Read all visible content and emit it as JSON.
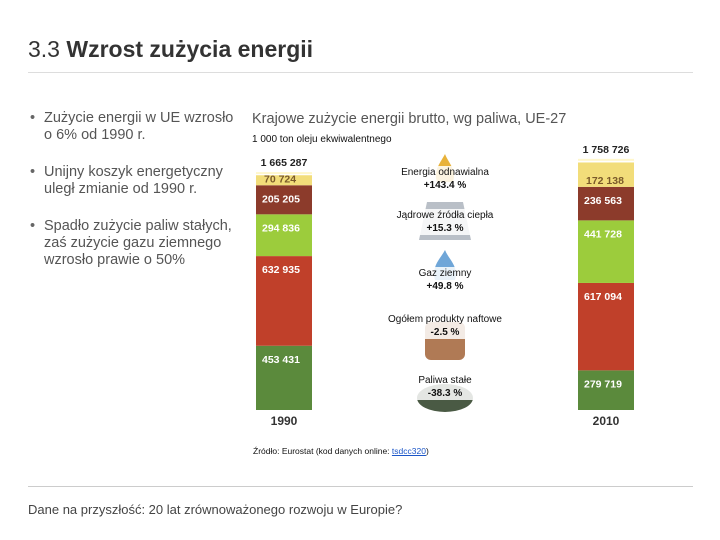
{
  "slide": {
    "title_prefix": "3.3 ",
    "title_main": "Wzrost zużycia energii",
    "bullets": [
      "Zużycie energii w UE wzrosło o 6% od 1990 r.",
      "Unijny koszyk energetyczny uległ zmianie od 1990 r.",
      "Spadło zużycie paliw stałych, zaś zużycie gazu ziemnego wzrosło prawie o 50%"
    ],
    "footer": "Dane na przyszłość: 20 lat zrównoważonego rozwoju w Europie?"
  },
  "source": {
    "prefix": "Źródło: Eurostat (kod danych online: ",
    "code": "tsdcc320",
    "suffix": ")"
  },
  "colors": {
    "solid": "#5b8a3c",
    "oil": "#c0402a",
    "gas": "#9ccc3c",
    "nuclear": "#8c3b2b",
    "renewable": "#f2dd7a",
    "total_band": "#fff7cc"
  },
  "chart_data": {
    "type": "bar",
    "stacked": true,
    "title": "Krajowe zużycie energii brutto, wg paliwa, UE-27",
    "unit": "1 000 ton oleju ekwiwalentnego",
    "categories": [
      "1990",
      "2010"
    ],
    "totals": [
      "1 665 287",
      "1 758 726"
    ],
    "total_values": [
      1665287,
      1758726
    ],
    "series": [
      {
        "key": "solid",
        "labels": [
          "453 431",
          "279 719"
        ],
        "values": [
          453431,
          279719
        ],
        "change_name": "Paliwa stałe",
        "change": "-38.3 %"
      },
      {
        "key": "oil",
        "labels": [
          "632 935",
          "617 094"
        ],
        "values": [
          632935,
          617094
        ],
        "change_name": "Ogółem produkty naftowe",
        "change": "-2.5 %"
      },
      {
        "key": "gas",
        "labels": [
          "294 836",
          "441 728"
        ],
        "values": [
          294836,
          441728
        ],
        "change_name": "Gaz ziemny",
        "change": "+49.8 %"
      },
      {
        "key": "nuclear",
        "labels": [
          "205 205",
          "236 563"
        ],
        "values": [
          205205,
          236563
        ],
        "change_name": "Jądrowe źródła ciepła",
        "change": "+15.3 %"
      },
      {
        "key": "renewable",
        "labels": [
          "70 724",
          "172 138"
        ],
        "values": [
          70724,
          172138
        ],
        "change_name": "Energia odnawialna",
        "change": "+143.4 %"
      }
    ]
  }
}
